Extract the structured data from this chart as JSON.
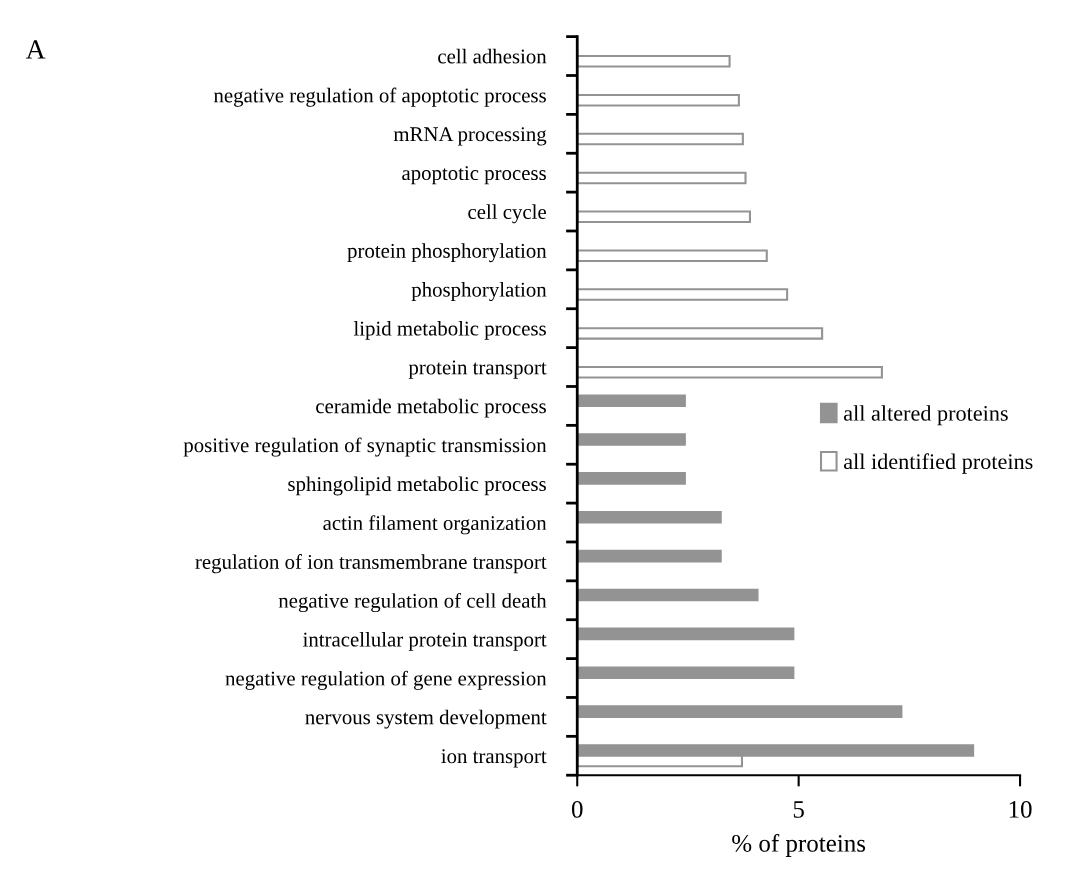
{
  "chart_data": {
    "type": "bar",
    "orientation": "horizontal",
    "categories": [
      "cell adhesion",
      "negative regulation of apoptotic process",
      "mRNA processing",
      "apoptotic process",
      "cell cycle",
      "protein phosphorylation",
      "phosphorylation",
      "lipid metabolic process",
      "protein transport",
      "ceramide metabolic process",
      "positive regulation of synaptic transmission",
      "sphingolipid metabolic process",
      "actin filament organization",
      "regulation of ion transmembrane transport",
      "negative regulation of cell death",
      "intracellular protein transport",
      "negative regulation of gene expression",
      "nervous system development",
      "ion transport"
    ],
    "series": [
      {
        "name": "all altered proteins",
        "color": "#939393",
        "values": [
          null,
          null,
          null,
          null,
          null,
          null,
          null,
          null,
          null,
          2.43,
          2.43,
          2.43,
          3.24,
          3.24,
          4.07,
          4.88,
          4.88,
          7.32,
          8.94
        ]
      },
      {
        "name": "all identified proteins",
        "color": "#ffffff",
        "values": [
          3.44,
          3.65,
          3.74,
          3.8,
          3.9,
          4.28,
          4.74,
          5.53,
          6.88,
          null,
          null,
          null,
          null,
          null,
          null,
          null,
          null,
          null,
          3.72
        ]
      }
    ],
    "xlabel": "% of proteins",
    "xlim": [
      0,
      10
    ],
    "xticks": [
      0,
      5,
      10
    ],
    "legend": "right",
    "grid": false,
    "annotations": [
      "A"
    ]
  }
}
